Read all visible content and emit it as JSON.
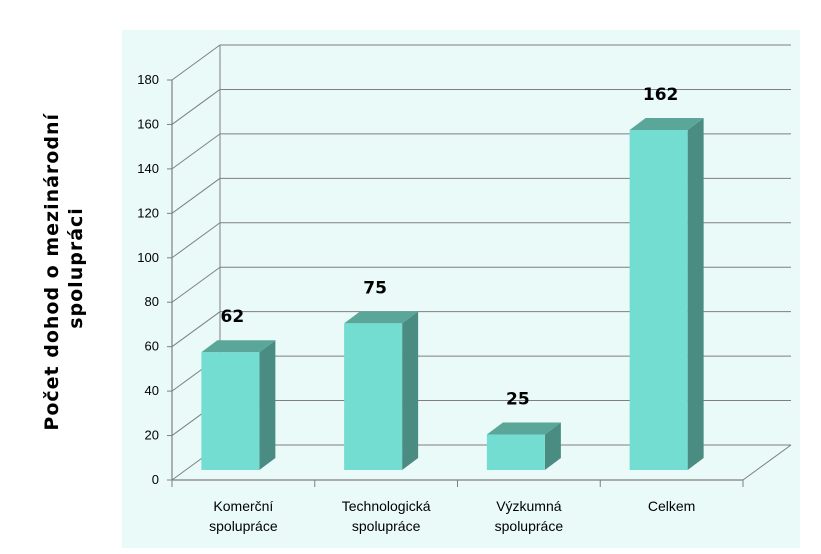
{
  "chart_data": {
    "type": "bar",
    "title": "",
    "ylabel_lines": [
      "Počet   dohod  o mezinárodní",
      "spolupráci"
    ],
    "xlabel": "",
    "categories": [
      [
        "Komerční",
        "spolupráce"
      ],
      [
        "Technologická",
        "spolupráce"
      ],
      [
        "Výzkumná",
        "spolupráce"
      ],
      [
        "Celkem"
      ]
    ],
    "values": [
      62,
      75,
      25,
      162
    ],
    "data_labels": [
      "62",
      "75",
      "25",
      "162"
    ],
    "ylim": [
      0,
      180
    ],
    "yticks": [
      0,
      20,
      40,
      60,
      80,
      100,
      120,
      140,
      160,
      180
    ],
    "grid": true,
    "legend": "none",
    "colors": {
      "plot_background": "#e9faf9",
      "bar_front": "#74ddd2",
      "bar_top": "#5aa699",
      "bar_side": "#4a8c82",
      "grid": "#7f7f7f"
    }
  }
}
